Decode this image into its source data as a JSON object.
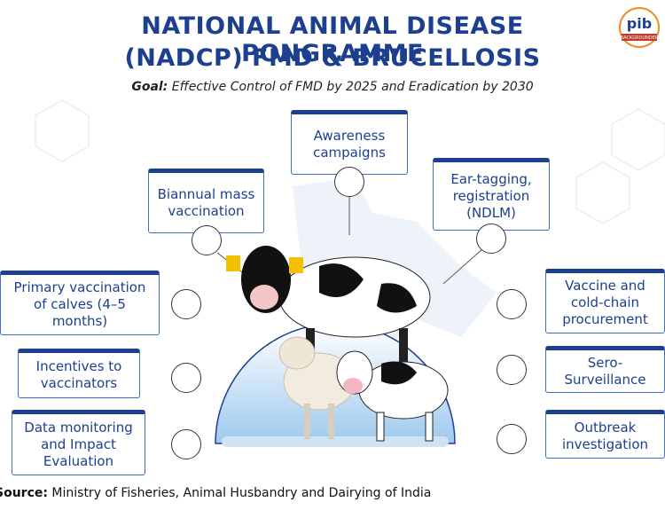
{
  "header": {
    "title_line1": "NATIONAL ANIMAL DISEASE PONGRAMME",
    "title_line2": "(NADCP) FMD & BRUCELLOSIS",
    "goal_label": "Goal:",
    "goal_text": "Effective Control of FMD by 2025 and Eradication by 2030"
  },
  "logo": {
    "mark": "pib",
    "caption": "BACKGROUNDER"
  },
  "nodes": [
    {
      "label": "Awareness campaigns"
    },
    {
      "label": "Biannual mass vaccination"
    },
    {
      "label": "Ear-tagging, registration (NDLM)"
    },
    {
      "label": "Primary vaccination of calves (4–5 months)"
    },
    {
      "label": "Incentives to vaccinators"
    },
    {
      "label": "Data monitoring and Impact Evaluation"
    },
    {
      "label": "Vaccine and cold-chain procurement"
    },
    {
      "label": "Sero-Surveillance"
    },
    {
      "label": "Outbreak investigation"
    }
  ],
  "footer": {
    "source_label": "Source:",
    "source_text": "Ministry of Fisheries, Animal Husbandry and Dairying of India"
  }
}
